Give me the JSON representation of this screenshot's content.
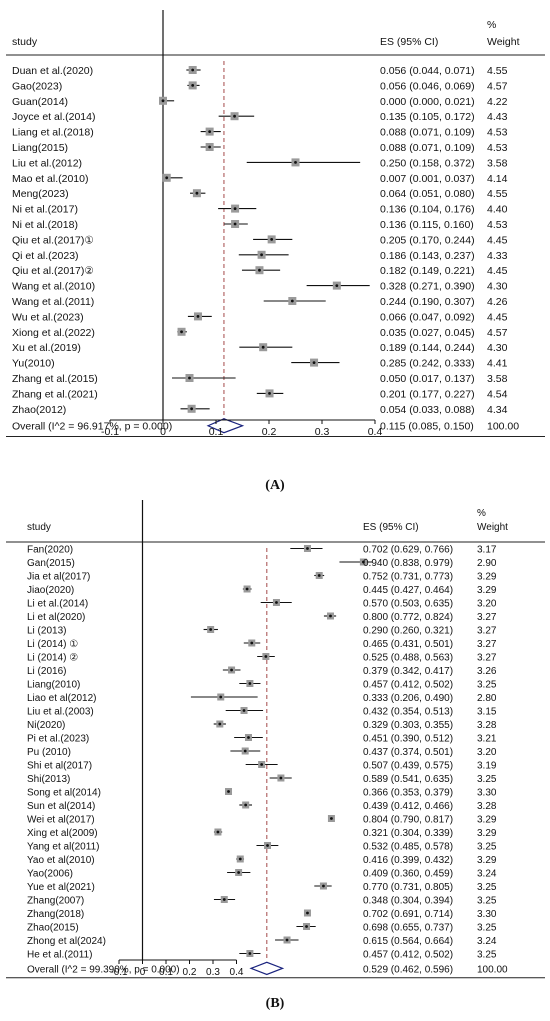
{
  "chart_data": [
    {
      "type": "forest",
      "panel": "(A)",
      "header": {
        "study": "study",
        "es": "ES (95% CI)",
        "pct": "%",
        "weight": "Weight"
      },
      "ref_line": 0.115,
      "xlim": [
        -0.1,
        0.4
      ],
      "ticks": [
        "-0.1",
        "0",
        "0.1",
        "0.2",
        "0.3",
        "0.4"
      ],
      "tick_values": [
        -0.1,
        0,
        0.1,
        0.2,
        0.3,
        0.4
      ],
      "studies": [
        {
          "label": "Duan et al.(2020)",
          "es": 0.056,
          "lo": 0.044,
          "hi": 0.071,
          "es_text": "0.056 (0.044, 0.071)",
          "weight": "4.55"
        },
        {
          "label": "Gao(2023)",
          "es": 0.056,
          "lo": 0.046,
          "hi": 0.069,
          "es_text": "0.056 (0.046, 0.069)",
          "weight": "4.57"
        },
        {
          "label": "Guan(2014)",
          "es": 0.0,
          "lo": 0.0,
          "hi": 0.021,
          "es_text": "0.000 (0.000, 0.021)",
          "weight": "4.22"
        },
        {
          "label": "Joyce et al.(2014)",
          "es": 0.135,
          "lo": 0.105,
          "hi": 0.172,
          "es_text": "0.135 (0.105, 0.172)",
          "weight": "4.43"
        },
        {
          "label": "Liang et al.(2018)",
          "es": 0.088,
          "lo": 0.071,
          "hi": 0.109,
          "es_text": "0.088 (0.071, 0.109)",
          "weight": "4.53"
        },
        {
          "label": "Liang(2015)",
          "es": 0.088,
          "lo": 0.071,
          "hi": 0.109,
          "es_text": "0.088 (0.071, 0.109)",
          "weight": "4.53"
        },
        {
          "label": "Liu et al.(2012)",
          "es": 0.25,
          "lo": 0.158,
          "hi": 0.372,
          "es_text": "0.250 (0.158, 0.372)",
          "weight": "3.58"
        },
        {
          "label": "Mao et al.(2010)",
          "es": 0.007,
          "lo": 0.001,
          "hi": 0.037,
          "es_text": "0.007 (0.001, 0.037)",
          "weight": "4.14"
        },
        {
          "label": "Meng(2023)",
          "es": 0.064,
          "lo": 0.051,
          "hi": 0.08,
          "es_text": "0.064 (0.051, 0.080)",
          "weight": "4.55"
        },
        {
          "label": "Ni et al.(2017)",
          "es": 0.136,
          "lo": 0.104,
          "hi": 0.176,
          "es_text": "0.136 (0.104, 0.176)",
          "weight": "4.40"
        },
        {
          "label": "Ni et al.(2018)",
          "es": 0.136,
          "lo": 0.115,
          "hi": 0.16,
          "es_text": "0.136 (0.115, 0.160)",
          "weight": "4.53"
        },
        {
          "label": "Qiu et al.(2017)①",
          "es": 0.205,
          "lo": 0.17,
          "hi": 0.244,
          "es_text": "0.205 (0.170, 0.244)",
          "weight": "4.45"
        },
        {
          "label": "Qi et al.(2023)",
          "es": 0.186,
          "lo": 0.143,
          "hi": 0.237,
          "es_text": "0.186 (0.143, 0.237)",
          "weight": "4.33"
        },
        {
          "label": "Qiu et al.(2017)②",
          "es": 0.182,
          "lo": 0.149,
          "hi": 0.221,
          "es_text": "0.182 (0.149, 0.221)",
          "weight": "4.45"
        },
        {
          "label": "Wang et al.(2010)",
          "es": 0.328,
          "lo": 0.271,
          "hi": 0.39,
          "es_text": "0.328 (0.271, 0.390)",
          "weight": "4.30"
        },
        {
          "label": "Wang et al.(2011)",
          "es": 0.244,
          "lo": 0.19,
          "hi": 0.307,
          "es_text": "0.244 (0.190, 0.307)",
          "weight": "4.26"
        },
        {
          "label": "Wu et al.(2023)",
          "es": 0.066,
          "lo": 0.047,
          "hi": 0.092,
          "es_text": "0.066 (0.047, 0.092)",
          "weight": "4.45"
        },
        {
          "label": "Xiong et al.(2022)",
          "es": 0.035,
          "lo": 0.027,
          "hi": 0.045,
          "es_text": "0.035 (0.027, 0.045)",
          "weight": "4.57"
        },
        {
          "label": "Xu et al.(2019)",
          "es": 0.189,
          "lo": 0.144,
          "hi": 0.244,
          "es_text": "0.189 (0.144, 0.244)",
          "weight": "4.30"
        },
        {
          "label": "Yu(2010)",
          "es": 0.285,
          "lo": 0.242,
          "hi": 0.333,
          "es_text": "0.285 (0.242, 0.333)",
          "weight": "4.41"
        },
        {
          "label": "Zhang et al.(2015)",
          "es": 0.05,
          "lo": 0.017,
          "hi": 0.137,
          "es_text": "0.050 (0.017, 0.137)",
          "weight": "3.58"
        },
        {
          "label": "Zhang et al.(2021)",
          "es": 0.201,
          "lo": 0.177,
          "hi": 0.227,
          "es_text": "0.201 (0.177, 0.227)",
          "weight": "4.54"
        },
        {
          "label": "Zhao(2012)",
          "es": 0.054,
          "lo": 0.033,
          "hi": 0.088,
          "es_text": "0.054 (0.033, 0.088)",
          "weight": "4.34"
        }
      ],
      "overall": {
        "label": "Overall  (I^2 = 96.917%, p = 0.000)",
        "es": 0.115,
        "lo": 0.085,
        "hi": 0.15,
        "es_text": "0.115 (0.085, 0.150)",
        "weight": "100.00"
      }
    },
    {
      "type": "forest",
      "panel": "(B)",
      "header": {
        "study": "study",
        "es": "ES (95% CI)",
        "pct": "%",
        "weight": "Weight"
      },
      "ref_line": 0.529,
      "xlim": [
        -0.1,
        1.0
      ],
      "ticks": [
        "-0.1",
        "0",
        "0.1",
        "0.2",
        "0.3",
        "0.4"
      ],
      "tick_values": [
        -0.1,
        0,
        0.1,
        0.2,
        0.3,
        0.4
      ],
      "studies": [
        {
          "label": "Fan(2020)",
          "es": 0.702,
          "lo": 0.629,
          "hi": 0.766,
          "es_text": "0.702 (0.629, 0.766)",
          "weight": "3.17"
        },
        {
          "label": "Gan(2015)",
          "es": 0.94,
          "lo": 0.838,
          "hi": 0.979,
          "es_text": "0.940 (0.838, 0.979)",
          "weight": "2.90"
        },
        {
          "label": "Jia et al(2017)",
          "es": 0.752,
          "lo": 0.731,
          "hi": 0.773,
          "es_text": "0.752 (0.731, 0.773)",
          "weight": "3.29"
        },
        {
          "label": "Jiao(2020)",
          "es": 0.445,
          "lo": 0.427,
          "hi": 0.464,
          "es_text": "0.445 (0.427, 0.464)",
          "weight": "3.29"
        },
        {
          "label": "Li et al.(2014)",
          "es": 0.57,
          "lo": 0.503,
          "hi": 0.635,
          "es_text": "0.570 (0.503, 0.635)",
          "weight": "3.20"
        },
        {
          "label": "Li et al(2020)",
          "es": 0.8,
          "lo": 0.772,
          "hi": 0.824,
          "es_text": "0.800 (0.772, 0.824)",
          "weight": "3.27"
        },
        {
          "label": "Li (2013)",
          "es": 0.29,
          "lo": 0.26,
          "hi": 0.321,
          "es_text": "0.290 (0.260, 0.321)",
          "weight": "3.27"
        },
        {
          "label": "Li (2014) ①",
          "es": 0.465,
          "lo": 0.431,
          "hi": 0.501,
          "es_text": "0.465 (0.431, 0.501)",
          "weight": "3.27"
        },
        {
          "label": "Li (2014) ②",
          "es": 0.525,
          "lo": 0.488,
          "hi": 0.563,
          "es_text": "0.525 (0.488, 0.563)",
          "weight": "3.27"
        },
        {
          "label": "Li (2016)",
          "es": 0.379,
          "lo": 0.342,
          "hi": 0.417,
          "es_text": "0.379 (0.342, 0.417)",
          "weight": "3.26"
        },
        {
          "label": "Liang(2010)",
          "es": 0.457,
          "lo": 0.412,
          "hi": 0.502,
          "es_text": "0.457 (0.412, 0.502)",
          "weight": "3.25"
        },
        {
          "label": "Liao et al(2012)",
          "es": 0.333,
          "lo": 0.206,
          "hi": 0.49,
          "es_text": "0.333 (0.206, 0.490)",
          "weight": "2.80"
        },
        {
          "label": "Liu et al.(2003)",
          "es": 0.432,
          "lo": 0.354,
          "hi": 0.513,
          "es_text": "0.432 (0.354, 0.513)",
          "weight": "3.15"
        },
        {
          "label": "Ni(2020)",
          "es": 0.329,
          "lo": 0.303,
          "hi": 0.355,
          "es_text": "0.329 (0.303, 0.355)",
          "weight": "3.28"
        },
        {
          "label": "Pi et al.(2023)",
          "es": 0.451,
          "lo": 0.39,
          "hi": 0.512,
          "es_text": "0.451 (0.390, 0.512)",
          "weight": "3.21"
        },
        {
          "label": "Pu (2010)",
          "es": 0.437,
          "lo": 0.374,
          "hi": 0.501,
          "es_text": "0.437 (0.374, 0.501)",
          "weight": "3.20"
        },
        {
          "label": "Shi et al(2017)",
          "es": 0.507,
          "lo": 0.439,
          "hi": 0.575,
          "es_text": "0.507 (0.439, 0.575)",
          "weight": "3.19"
        },
        {
          "label": "Shi(2013)",
          "es": 0.589,
          "lo": 0.541,
          "hi": 0.635,
          "es_text": "0.589 (0.541, 0.635)",
          "weight": "3.25"
        },
        {
          "label": "Song et al(2014)",
          "es": 0.366,
          "lo": 0.353,
          "hi": 0.379,
          "es_text": "0.366 (0.353, 0.379)",
          "weight": "3.30"
        },
        {
          "label": "Sun et al(2014)",
          "es": 0.439,
          "lo": 0.412,
          "hi": 0.466,
          "es_text": "0.439 (0.412, 0.466)",
          "weight": "3.28"
        },
        {
          "label": "Wei et al(2017)",
          "es": 0.804,
          "lo": 0.79,
          "hi": 0.817,
          "es_text": "0.804 (0.790, 0.817)",
          "weight": "3.29"
        },
        {
          "label": "Xing et al(2009)",
          "es": 0.321,
          "lo": 0.304,
          "hi": 0.339,
          "es_text": "0.321 (0.304, 0.339)",
          "weight": "3.29"
        },
        {
          "label": "Yang et al(2011)",
          "es": 0.532,
          "lo": 0.485,
          "hi": 0.578,
          "es_text": "0.532 (0.485, 0.578)",
          "weight": "3.25"
        },
        {
          "label": "Yao et al(2010)",
          "es": 0.416,
          "lo": 0.399,
          "hi": 0.432,
          "es_text": "0.416 (0.399, 0.432)",
          "weight": "3.29"
        },
        {
          "label": "Yao(2006)",
          "es": 0.409,
          "lo": 0.36,
          "hi": 0.459,
          "es_text": "0.409 (0.360, 0.459)",
          "weight": "3.24"
        },
        {
          "label": "Yue et al(2021)",
          "es": 0.77,
          "lo": 0.731,
          "hi": 0.805,
          "es_text": "0.770 (0.731, 0.805)",
          "weight": "3.25"
        },
        {
          "label": "Zhang(2007)",
          "es": 0.348,
          "lo": 0.304,
          "hi": 0.394,
          "es_text": "0.348 (0.304, 0.394)",
          "weight": "3.25"
        },
        {
          "label": "Zhang(2018)",
          "es": 0.702,
          "lo": 0.691,
          "hi": 0.714,
          "es_text": "0.702 (0.691, 0.714)",
          "weight": "3.30"
        },
        {
          "label": "Zhao(2015)",
          "es": 0.698,
          "lo": 0.655,
          "hi": 0.737,
          "es_text": "0.698 (0.655, 0.737)",
          "weight": "3.25"
        },
        {
          "label": "Zhong et al(2024)",
          "es": 0.615,
          "lo": 0.564,
          "hi": 0.664,
          "es_text": "0.615 (0.564, 0.664)",
          "weight": "3.24"
        },
        {
          "label": "He et al.(2011)",
          "es": 0.457,
          "lo": 0.412,
          "hi": 0.502,
          "es_text": "0.457 (0.412, 0.502)",
          "weight": "3.25"
        }
      ],
      "overall": {
        "label": "Overall  (I^2 = 99.390%, p = 0.000)",
        "es": 0.529,
        "lo": 0.462,
        "hi": 0.596,
        "es_text": "0.529 (0.462, 0.596)",
        "weight": "100.00"
      }
    }
  ]
}
